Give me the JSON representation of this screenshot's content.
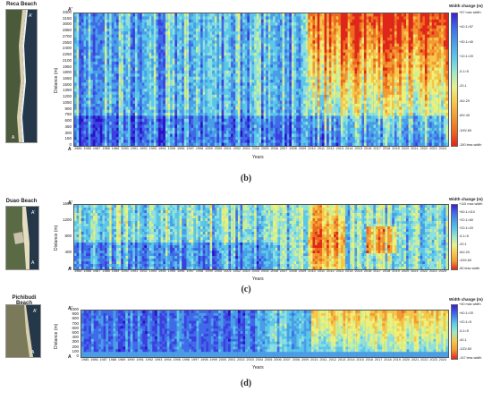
{
  "panels": [
    {
      "id": "b",
      "beach_name": "Reca Beach",
      "caption": "(b)",
      "ylabel": "Distance (m)",
      "xlabel": "Years",
      "ytick_labels": [
        "0",
        "150",
        "300",
        "450",
        "600",
        "750",
        "900",
        "1050",
        "1200",
        "1350",
        "1500",
        "1650",
        "1800",
        "1950",
        "2100",
        "2250",
        "2400",
        "2550",
        "2700",
        "2850",
        "3000",
        "3150",
        "3300"
      ],
      "x_labels": [
        "1985",
        "1986",
        "1987",
        "1988",
        "1989",
        "1990",
        "1991",
        "1992",
        "1993",
        "1994",
        "1995",
        "1996",
        "1997",
        "1998",
        "1999",
        "2000",
        "2001",
        "2002",
        "2003",
        "2004",
        "2005",
        "2006",
        "2007",
        "2008",
        "2009",
        "2010",
        "2011",
        "2012",
        "2013",
        "2014",
        "2015",
        "2016",
        "2017",
        "2018",
        "2019",
        "2020",
        "2021",
        "2022",
        "2023",
        "2024"
      ],
      "legend_title": "Width change (m)",
      "legend_labels": [
        "+57 max width",
        "+40.1>57",
        "+30.1>40",
        "+10.1>20",
        "-5.1>5",
        "-20.1",
        "-40/-20",
        "-60/-40",
        "-100/-60",
        "-150 less width"
      ],
      "colors": [
        "#3b1fd6",
        "#3f6bea",
        "#4a9ee8",
        "#5bc8ea",
        "#9be8c8",
        "#e9f08a",
        "#f6c84a",
        "#f39a32",
        "#ee6a1e",
        "#e0261a"
      ]
    },
    {
      "id": "c",
      "beach_name": "Duao Beach",
      "caption": "(c)",
      "ylabel": "Distance (m)",
      "xlabel": "Years",
      "ytick_labels": [
        "0",
        "400",
        "800",
        "1200",
        "1600"
      ],
      "x_labels": [
        "1985",
        "1986",
        "1987",
        "1988",
        "1989",
        "1990",
        "1991",
        "1992",
        "1993",
        "1994",
        "1995",
        "1996",
        "1997",
        "1998",
        "1999",
        "2000",
        "2001",
        "2002",
        "2003",
        "2004",
        "2005",
        "2006",
        "2007",
        "2008",
        "2009",
        "2010",
        "2011",
        "2012",
        "2013",
        "2014",
        "2015",
        "2016",
        "2017",
        "2018",
        "2019",
        "2020",
        "2021",
        "2022",
        "2023",
        "2024"
      ],
      "legend_title": "Width change (m)",
      "legend_labels": [
        "+110 max width",
        "+60.1>110",
        "+20.1>60",
        "+20.1>20",
        "-5.1>5",
        "-20.1",
        "-60/-20",
        "-100/-60",
        "-80 less width"
      ],
      "colors": [
        "#3b1fd6",
        "#3f6bea",
        "#4a9ee8",
        "#5bc8ea",
        "#9be8c8",
        "#e9f08a",
        "#f6c84a",
        "#f39a32",
        "#e0261a"
      ]
    },
    {
      "id": "d",
      "beach_name": "Pichibudi Beach",
      "caption": "(d)",
      "ylabel": "Distance (m)",
      "xlabel": "Years",
      "ytick_labels": [
        "0",
        "100",
        "200",
        "300",
        "400",
        "500",
        "600",
        "700",
        "800",
        "900",
        "1000"
      ],
      "x_labels": [
        "1985",
        "1986",
        "1987",
        "1988",
        "1989",
        "1990",
        "1991",
        "1992",
        "1993",
        "1994",
        "1995",
        "1996",
        "1997",
        "1998",
        "1999",
        "2000",
        "2001",
        "2002",
        "2003",
        "2004",
        "2005",
        "2006",
        "2007",
        "2008",
        "2009",
        "2010",
        "2011",
        "2012",
        "2013",
        "2014",
        "2015",
        "2016",
        "2017",
        "2018",
        "2019",
        "2020",
        "2021",
        "2022",
        "2023",
        "2024"
      ],
      "legend_title": "Width change (m)",
      "legend_labels": [
        "+40 max width",
        "+40.1>20",
        "+20.1>5",
        "-5.1>5",
        "-40.1",
        "-120/-60",
        "-147 less width"
      ],
      "colors": [
        "#3b1fd6",
        "#3f6bea",
        "#5bc8ea",
        "#9be8c8",
        "#f6c84a",
        "#f39a32",
        "#e0261a"
      ]
    }
  ],
  "axis_markers": {
    "top": "A'",
    "bottom": "A"
  }
}
